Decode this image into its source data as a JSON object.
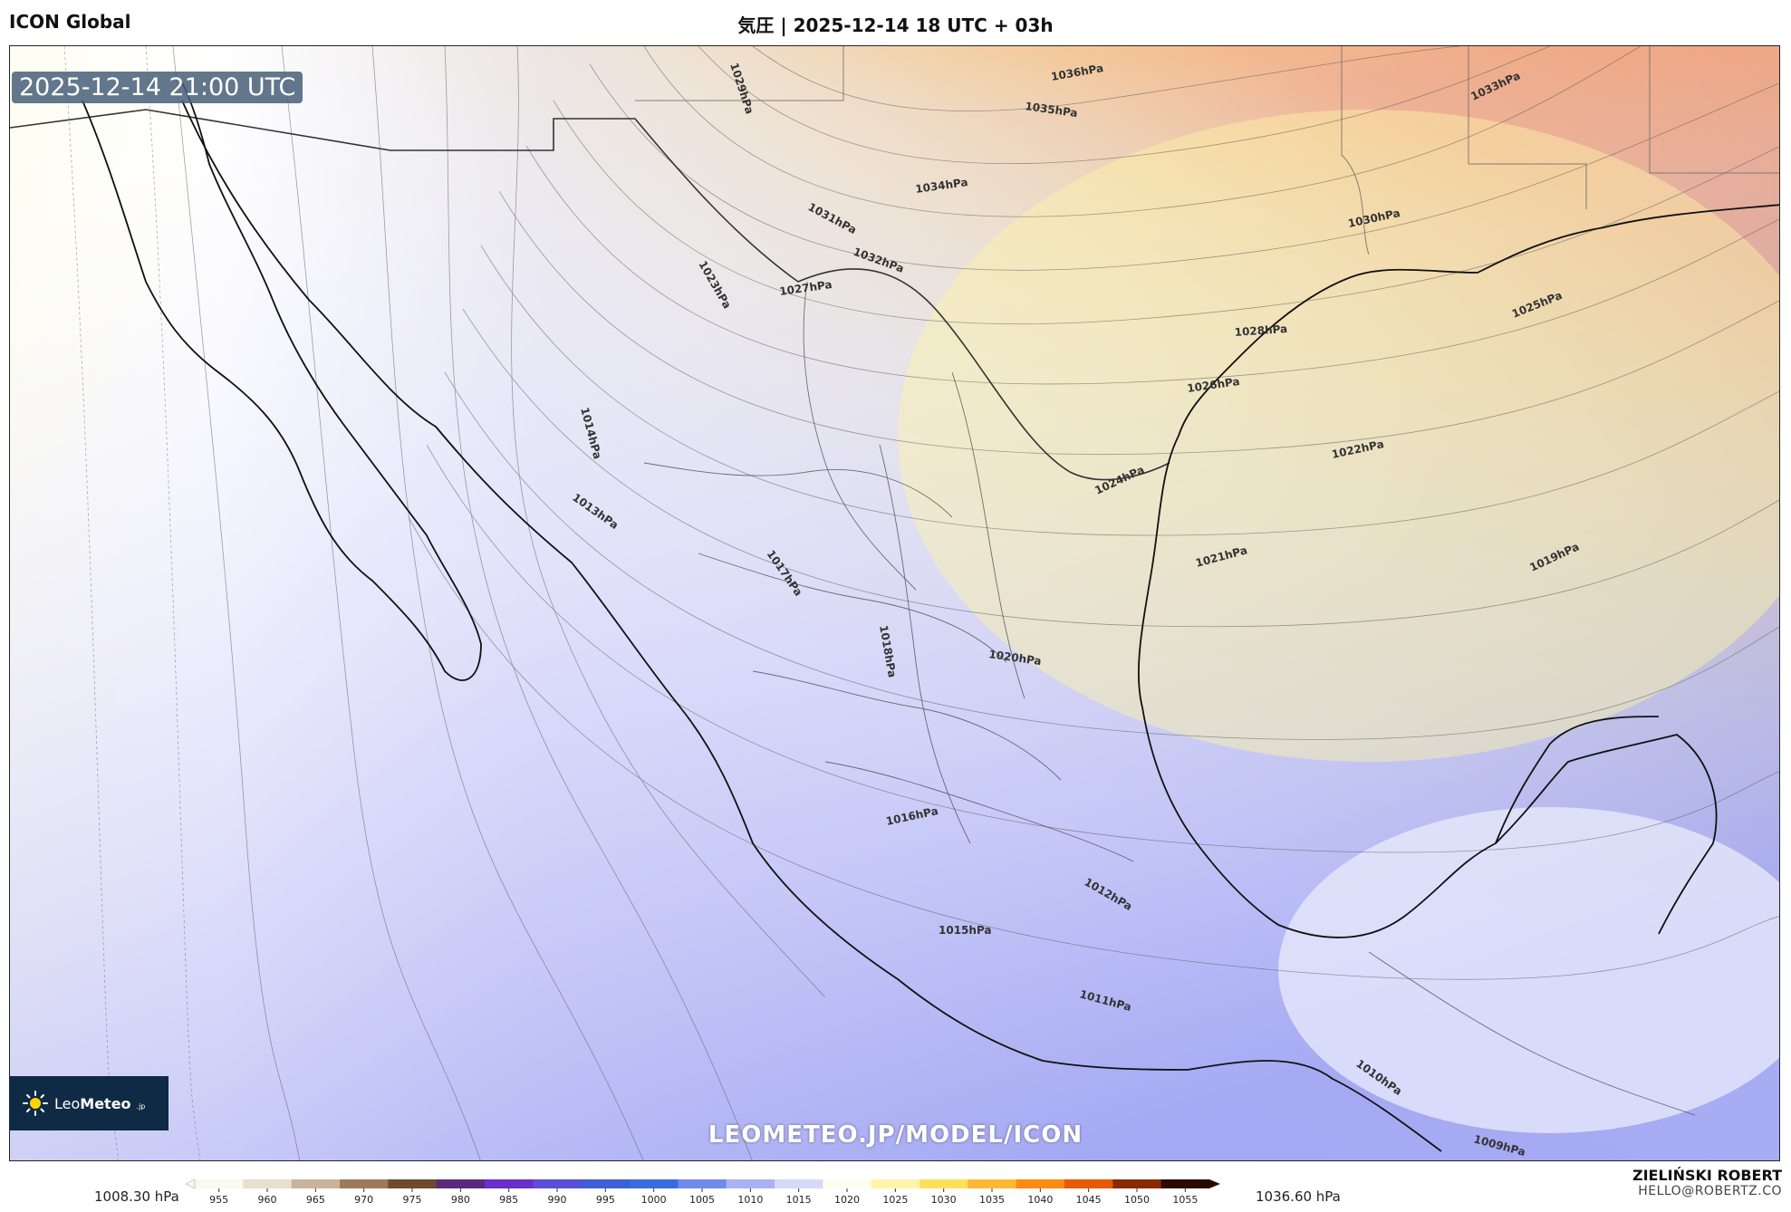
{
  "header": {
    "model_name": "ICON Global",
    "title": "気圧 | 2025-12-14 18 UTC + 03h"
  },
  "map": {
    "valid_time": "2025-12-14 21:00 UTC",
    "watermark": "LEOMETEO.JP/MODEL/ICON",
    "contour_labels": [
      "1036hPa",
      "1035hPa",
      "1034hPa",
      "1033hPa",
      "1032hPa",
      "1031hPa",
      "1030hPa",
      "1029hPa",
      "1028hPa",
      "1027hPa",
      "1026hPa",
      "1025hPa",
      "1024hPa",
      "1023hPa",
      "1022hPa",
      "1021hPa",
      "1020hPa",
      "1019hPa",
      "1018hPa",
      "1017hPa",
      "1016hPa",
      "1015hPa",
      "1014hPa",
      "1013hPa",
      "1012hPa",
      "1011hPa",
      "1010hPa",
      "1009hPa"
    ]
  },
  "logo": {
    "brand_light": "Leo",
    "brand_bold": "Meteo",
    "tld": ".jp"
  },
  "legend": {
    "min_label": "1008.30 hPa",
    "max_label": "1036.60 hPa",
    "ticks": [
      "955",
      "960",
      "965",
      "970",
      "975",
      "980",
      "985",
      "990",
      "995",
      "1000",
      "1005",
      "1010",
      "1015",
      "1020",
      "1025",
      "1030",
      "1035",
      "1040",
      "1045",
      "1050",
      "1055"
    ],
    "colors": [
      "#fbf8ee",
      "#e7dfcf",
      "#c9b39c",
      "#9e7a5a",
      "#6e4a2e",
      "#5a2a7a",
      "#6a2ecb",
      "#5a4fd6",
      "#3f5fd6",
      "#3a6ce0",
      "#6f8bea",
      "#a9b3f3",
      "#d6d9f8",
      "#fffdf0",
      "#fff5a8",
      "#ffe05a",
      "#ffb833",
      "#ff8a10",
      "#e85a00",
      "#8a2a00",
      "#2a0a00"
    ],
    "unit": "hPa"
  },
  "footer": {
    "author": "ZIELIŃSKI ROBERT",
    "email": "HELLO@ROBERTZ.CO"
  }
}
